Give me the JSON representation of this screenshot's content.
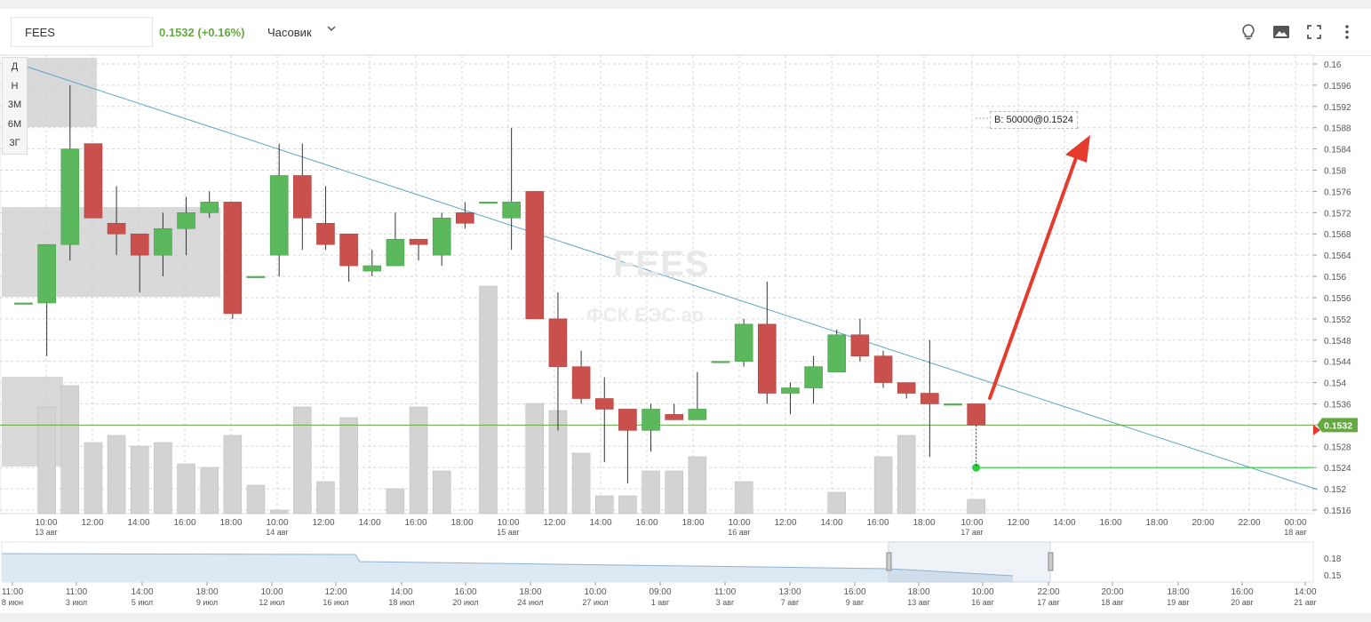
{
  "toolbar": {
    "ticker": "FEES",
    "price_change": "0.1532 (+0.16%)",
    "interval": "Часовик",
    "icons": [
      "lightbulb-icon",
      "image-icon",
      "fullscreen-icon",
      "more-vert-icon"
    ]
  },
  "period_buttons": [
    "Д",
    "Н",
    "3М",
    "6М",
    "3Г"
  ],
  "watermark": {
    "ticker": "FEES",
    "name": "ФСК ЕЭС ао"
  },
  "order_label": "B: 50000@0.1524",
  "last_price_label": "0.1532",
  "colors": {
    "up": "#5cb85c",
    "down": "#c9504c",
    "trendline": "#5ba6c6",
    "last_price": "#64a940",
    "order_line": "#2ecc40",
    "arrow": "#e53b2c"
  },
  "chart_data": {
    "type": "candlestick",
    "title": "FEES",
    "y_ticks": [
      "0.16",
      "0.1596",
      "0.1592",
      "0.1588",
      "0.1584",
      "0.158",
      "0.1576",
      "0.1572",
      "0.1568",
      "0.1564",
      "0.156",
      "0.1556",
      "0.1552",
      "0.1548",
      "0.1544",
      "0.154",
      "0.1536",
      "0.1532",
      "0.1528",
      "0.1524",
      "0.152",
      "0.1516"
    ],
    "ylim": [
      0.1516,
      0.16
    ],
    "x_ticks": [
      {
        "time": "10:00",
        "date": "13 авг"
      },
      {
        "time": "12:00",
        "date": ""
      },
      {
        "time": "14:00",
        "date": ""
      },
      {
        "time": "16:00",
        "date": ""
      },
      {
        "time": "18:00",
        "date": ""
      },
      {
        "time": "10:00",
        "date": "14 авг"
      },
      {
        "time": "12:00",
        "date": ""
      },
      {
        "time": "14:00",
        "date": ""
      },
      {
        "time": "16:00",
        "date": ""
      },
      {
        "time": "18:00",
        "date": ""
      },
      {
        "time": "10:00",
        "date": "15 авг"
      },
      {
        "time": "12:00",
        "date": ""
      },
      {
        "time": "14:00",
        "date": ""
      },
      {
        "time": "16:00",
        "date": ""
      },
      {
        "time": "18:00",
        "date": ""
      },
      {
        "time": "10:00",
        "date": "16 авг"
      },
      {
        "time": "12:00",
        "date": ""
      },
      {
        "time": "14:00",
        "date": ""
      },
      {
        "time": "16:00",
        "date": ""
      },
      {
        "time": "18:00",
        "date": ""
      },
      {
        "time": "10:00",
        "date": "17 авг"
      },
      {
        "time": "12:00",
        "date": ""
      },
      {
        "time": "14:00",
        "date": ""
      },
      {
        "time": "16:00",
        "date": ""
      },
      {
        "time": "18:00",
        "date": ""
      },
      {
        "time": "20:00",
        "date": ""
      },
      {
        "time": "22:00",
        "date": ""
      },
      {
        "time": "00:00",
        "date": "18 авг"
      }
    ],
    "candles": [
      {
        "o": 0.1555,
        "h": 0.1555,
        "l": 0.1555,
        "c": 0.1555
      },
      {
        "o": 0.1555,
        "h": 0.1566,
        "l": 0.1545,
        "c": 0.1566
      },
      {
        "o": 0.1566,
        "h": 0.1596,
        "l": 0.1563,
        "c": 0.1584
      },
      {
        "o": 0.1585,
        "h": 0.1585,
        "l": 0.1571,
        "c": 0.1571
      },
      {
        "o": 0.157,
        "h": 0.1577,
        "l": 0.1564,
        "c": 0.1568
      },
      {
        "o": 0.1568,
        "h": 0.1568,
        "l": 0.1557,
        "c": 0.1564
      },
      {
        "o": 0.1564,
        "h": 0.1572,
        "l": 0.156,
        "c": 0.1569
      },
      {
        "o": 0.1569,
        "h": 0.1575,
        "l": 0.1564,
        "c": 0.1572
      },
      {
        "o": 0.1572,
        "h": 0.1576,
        "l": 0.1571,
        "c": 0.1574
      },
      {
        "o": 0.1574,
        "h": 0.1574,
        "l": 0.1552,
        "c": 0.1553
      },
      {
        "o": 0.156,
        "h": 0.156,
        "l": 0.156,
        "c": 0.156
      },
      {
        "o": 0.1564,
        "h": 0.1585,
        "l": 0.156,
        "c": 0.1579
      },
      {
        "o": 0.1579,
        "h": 0.1585,
        "l": 0.1565,
        "c": 0.1571
      },
      {
        "o": 0.157,
        "h": 0.1577,
        "l": 0.1565,
        "c": 0.1566
      },
      {
        "o": 0.1568,
        "h": 0.1568,
        "l": 0.1559,
        "c": 0.1562
      },
      {
        "o": 0.1561,
        "h": 0.1565,
        "l": 0.156,
        "c": 0.1562
      },
      {
        "o": 0.1562,
        "h": 0.1572,
        "l": 0.1562,
        "c": 0.1567
      },
      {
        "o": 0.1567,
        "h": 0.1567,
        "l": 0.1563,
        "c": 0.1566
      },
      {
        "o": 0.1564,
        "h": 0.1572,
        "l": 0.1562,
        "c": 0.1571
      },
      {
        "o": 0.1572,
        "h": 0.1574,
        "l": 0.1569,
        "c": 0.157
      },
      {
        "o": 0.1574,
        "h": 0.1574,
        "l": 0.1574,
        "c": 0.1574
      },
      {
        "o": 0.1571,
        "h": 0.1588,
        "l": 0.1565,
        "c": 0.1574
      },
      {
        "o": 0.1576,
        "h": 0.1576,
        "l": 0.1552,
        "c": 0.1552
      },
      {
        "o": 0.1552,
        "h": 0.1557,
        "l": 0.1531,
        "c": 0.1543
      },
      {
        "o": 0.1543,
        "h": 0.1546,
        "l": 0.1536,
        "c": 0.1537
      },
      {
        "o": 0.1537,
        "h": 0.1541,
        "l": 0.1525,
        "c": 0.1535
      },
      {
        "o": 0.1535,
        "h": 0.1535,
        "l": 0.1521,
        "c": 0.1531
      },
      {
        "o": 0.1531,
        "h": 0.1536,
        "l": 0.1527,
        "c": 0.1535
      },
      {
        "o": 0.1534,
        "h": 0.1536,
        "l": 0.1533,
        "c": 0.1533
      },
      {
        "o": 0.1533,
        "h": 0.1542,
        "l": 0.1533,
        "c": 0.1535
      },
      {
        "o": 0.1544,
        "h": 0.1544,
        "l": 0.1544,
        "c": 0.1544
      },
      {
        "o": 0.1544,
        "h": 0.1552,
        "l": 0.1543,
        "c": 0.1551
      },
      {
        "o": 0.1551,
        "h": 0.1559,
        "l": 0.1536,
        "c": 0.1538
      },
      {
        "o": 0.1538,
        "h": 0.154,
        "l": 0.1534,
        "c": 0.1539
      },
      {
        "o": 0.1539,
        "h": 0.1545,
        "l": 0.1536,
        "c": 0.1543
      },
      {
        "o": 0.1542,
        "h": 0.155,
        "l": 0.1542,
        "c": 0.1549
      },
      {
        "o": 0.1549,
        "h": 0.1552,
        "l": 0.1544,
        "c": 0.1545
      },
      {
        "o": 0.1545,
        "h": 0.1546,
        "l": 0.1539,
        "c": 0.154
      },
      {
        "o": 0.154,
        "h": 0.154,
        "l": 0.1537,
        "c": 0.1538
      },
      {
        "o": 0.1538,
        "h": 0.1548,
        "l": 0.1526,
        "c": 0.1536
      },
      {
        "o": 0.1536,
        "h": 0.1536,
        "l": 0.1536,
        "c": 0.1536
      },
      {
        "o": 0.1536,
        "h": 0.1536,
        "l": 0.1532,
        "c": 0.1532
      }
    ],
    "volumes": [
      0,
      0.3,
      0.36,
      0.2,
      0.22,
      0.19,
      0.2,
      0.14,
      0.13,
      0.22,
      0.08,
      0.01,
      0.3,
      0.09,
      0.27,
      0.0,
      0.07,
      0.3,
      0.12,
      0.0,
      0.64,
      0.0,
      0.31,
      0.29,
      0.17,
      0.05,
      0.05,
      0.12,
      0.12,
      0.16,
      0.0,
      0.09,
      0.0,
      0.0,
      0.0,
      0.06,
      0.0,
      0.16,
      0.22,
      0.0,
      0.0,
      0.04
    ],
    "last_price": 0.1532,
    "order_price": 0.1524
  },
  "navigator": {
    "y_labels": [
      "0.18",
      "0.15"
    ],
    "x_ticks": [
      {
        "time": "11:00",
        "date": "8 июн"
      },
      {
        "time": "11:00",
        "date": "3 июл"
      },
      {
        "time": "14:00",
        "date": "5 июл"
      },
      {
        "time": "18:00",
        "date": "9 июл"
      },
      {
        "time": "10:00",
        "date": "12 июл"
      },
      {
        "time": "12:00",
        "date": "16 июл"
      },
      {
        "time": "14:00",
        "date": "18 июл"
      },
      {
        "time": "16:00",
        "date": "20 июл"
      },
      {
        "time": "18:00",
        "date": "24 июл"
      },
      {
        "time": "10:00",
        "date": "27 июл"
      },
      {
        "time": "09:00",
        "date": "1 авг"
      },
      {
        "time": "11:00",
        "date": "3 авг"
      },
      {
        "time": "13:00",
        "date": "7 авг"
      },
      {
        "time": "16:00",
        "date": "9 авг"
      },
      {
        "time": "18:00",
        "date": "13 авг"
      },
      {
        "time": "10:00",
        "date": "16 авг"
      },
      {
        "time": "22:00",
        "date": "17 авг"
      },
      {
        "time": "20:00",
        "date": "18 авг"
      },
      {
        "time": "18:00",
        "date": "19 авг"
      },
      {
        "time": "16:00",
        "date": "20 авг"
      },
      {
        "time": "14:00",
        "date": "21 авг"
      }
    ]
  }
}
